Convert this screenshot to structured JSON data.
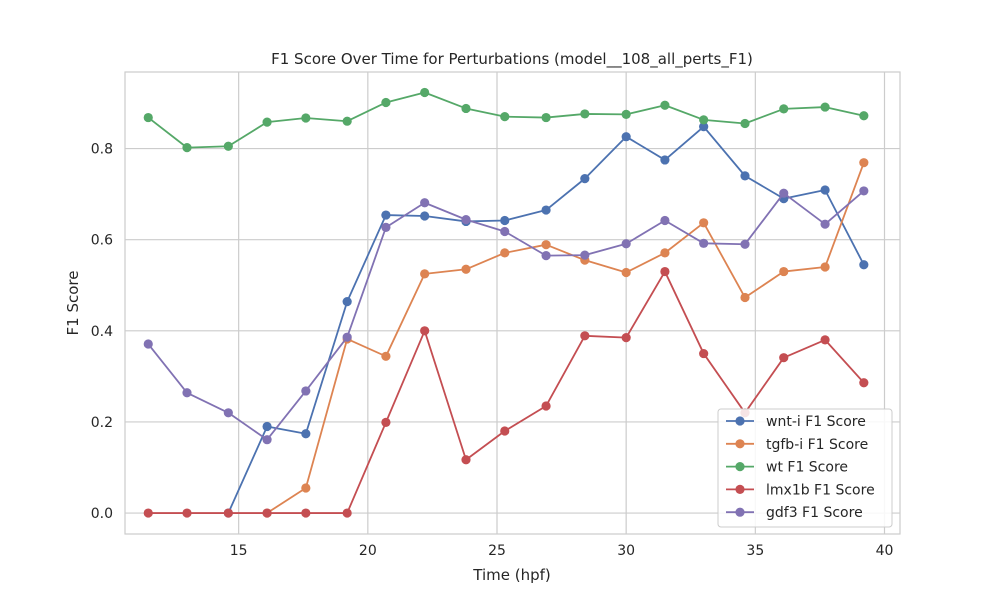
{
  "chart_data": {
    "type": "line",
    "title": "F1 Score Over Time for Perturbations (model__108_all_perts_F1)",
    "xlabel": "Time (hpf)",
    "ylabel": "F1 Score",
    "xlim": [
      10.6,
      40.6
    ],
    "ylim": [
      -0.046,
      0.968
    ],
    "xticks": [
      15,
      20,
      25,
      30,
      35,
      40
    ],
    "yticks": [
      0.0,
      0.2,
      0.4,
      0.6,
      0.8
    ],
    "ytick_labels": [
      "0.0",
      "0.2",
      "0.4",
      "0.6",
      "0.8"
    ],
    "grid": true,
    "legend_position": "lower-right",
    "x": [
      11.5,
      13.0,
      14.6,
      16.1,
      17.6,
      19.2,
      20.7,
      22.2,
      23.8,
      25.3,
      26.9,
      28.4,
      30.0,
      31.5,
      33.0,
      34.6,
      36.1,
      37.7,
      39.2
    ],
    "series": [
      {
        "name": "wnt-i F1 Score",
        "color": "#4c72b0",
        "x": [
          14.6,
          16.1,
          17.6,
          19.2,
          20.7,
          22.2,
          23.8,
          25.3,
          26.9,
          28.4,
          30.0,
          31.5,
          33.0,
          34.6,
          36.1,
          37.7,
          39.2
        ],
        "values": [
          0.0,
          0.19,
          0.174,
          0.464,
          0.654,
          0.652,
          0.64,
          0.642,
          0.665,
          0.734,
          0.826,
          0.775,
          0.848,
          0.74,
          0.69,
          0.709,
          0.545
        ]
      },
      {
        "name": "tgfb-i F1 Score",
        "color": "#dd8452",
        "x": [
          16.1,
          17.6,
          19.2,
          20.7,
          22.2,
          23.8,
          25.3,
          26.9,
          28.4,
          30.0,
          31.5,
          33.0,
          34.6,
          36.1,
          37.7,
          39.2
        ],
        "values": [
          0.0,
          0.055,
          0.382,
          0.344,
          0.525,
          0.535,
          0.571,
          0.589,
          0.555,
          0.528,
          0.571,
          0.637,
          0.473,
          0.53,
          0.54,
          0.769
        ]
      },
      {
        "name": "wt F1 Score",
        "color": "#55a868",
        "x": [
          11.5,
          13.0,
          14.6,
          16.1,
          17.6,
          19.2,
          20.7,
          22.2,
          23.8,
          25.3,
          26.9,
          28.4,
          30.0,
          31.5,
          33.0,
          34.6,
          36.1,
          37.7,
          39.2
        ],
        "values": [
          0.868,
          0.802,
          0.805,
          0.858,
          0.867,
          0.86,
          0.901,
          0.923,
          0.888,
          0.87,
          0.868,
          0.876,
          0.875,
          0.895,
          0.863,
          0.855,
          0.887,
          0.891,
          0.872
        ]
      },
      {
        "name": "lmx1b F1 Score",
        "color": "#c44e52",
        "x": [
          11.5,
          13.0,
          14.6,
          16.1,
          17.6,
          19.2,
          20.7,
          22.2,
          23.8,
          25.3,
          26.9,
          28.4,
          30.0,
          31.5,
          33.0,
          34.6,
          36.1,
          37.7,
          39.2
        ],
        "values": [
          0.0,
          0.0,
          0.0,
          0.0,
          0.0,
          0.0,
          0.199,
          0.4,
          0.117,
          0.18,
          0.235,
          0.389,
          0.385,
          0.53,
          0.35,
          0.22,
          0.341,
          0.38,
          0.286
        ]
      },
      {
        "name": "gdf3 F1 Score",
        "color": "#8172b3",
        "x": [
          11.5,
          13.0,
          14.6,
          16.1,
          17.6,
          19.2,
          20.7,
          22.2,
          23.8,
          25.3,
          26.9,
          28.4,
          30.0,
          31.5,
          33.0,
          34.6,
          36.1,
          37.7,
          39.2
        ],
        "values": [
          0.371,
          0.264,
          0.22,
          0.161,
          0.268,
          0.386,
          0.627,
          0.681,
          0.644,
          0.618,
          0.565,
          0.566,
          0.591,
          0.642,
          0.592,
          0.59,
          0.702,
          0.634,
          0.707
        ]
      }
    ]
  }
}
